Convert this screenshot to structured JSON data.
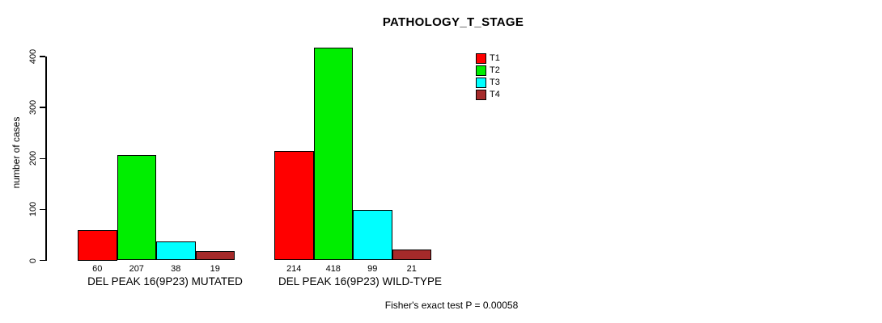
{
  "window": {
    "background_color": "#ffffff",
    "text_color": "#000000"
  },
  "chart_data": {
    "type": "bar",
    "title": "PATHOLOGY_T_STAGE",
    "ylabel": "number of cases",
    "xlabel": "",
    "ylim": [
      0,
      400
    ],
    "yticks": [
      0,
      100,
      200,
      300,
      400
    ],
    "grid": false,
    "legend_position": "top-right",
    "bar_value_labels": true,
    "categories": [
      "DEL PEAK 16(9P23) MUTATED",
      "DEL PEAK 16(9P23) WILD-TYPE"
    ],
    "series": [
      {
        "name": "T1",
        "color": "#ff0000",
        "values": [
          60,
          214
        ]
      },
      {
        "name": "T2",
        "color": "#00ee00",
        "values": [
          207,
          418
        ]
      },
      {
        "name": "T3",
        "color": "#00ffff",
        "values": [
          38,
          99
        ]
      },
      {
        "name": "T4",
        "color": "#a52a2a",
        "values": [
          19,
          21
        ]
      }
    ],
    "footnote": "Fisher's exact test P = 0.00058"
  }
}
